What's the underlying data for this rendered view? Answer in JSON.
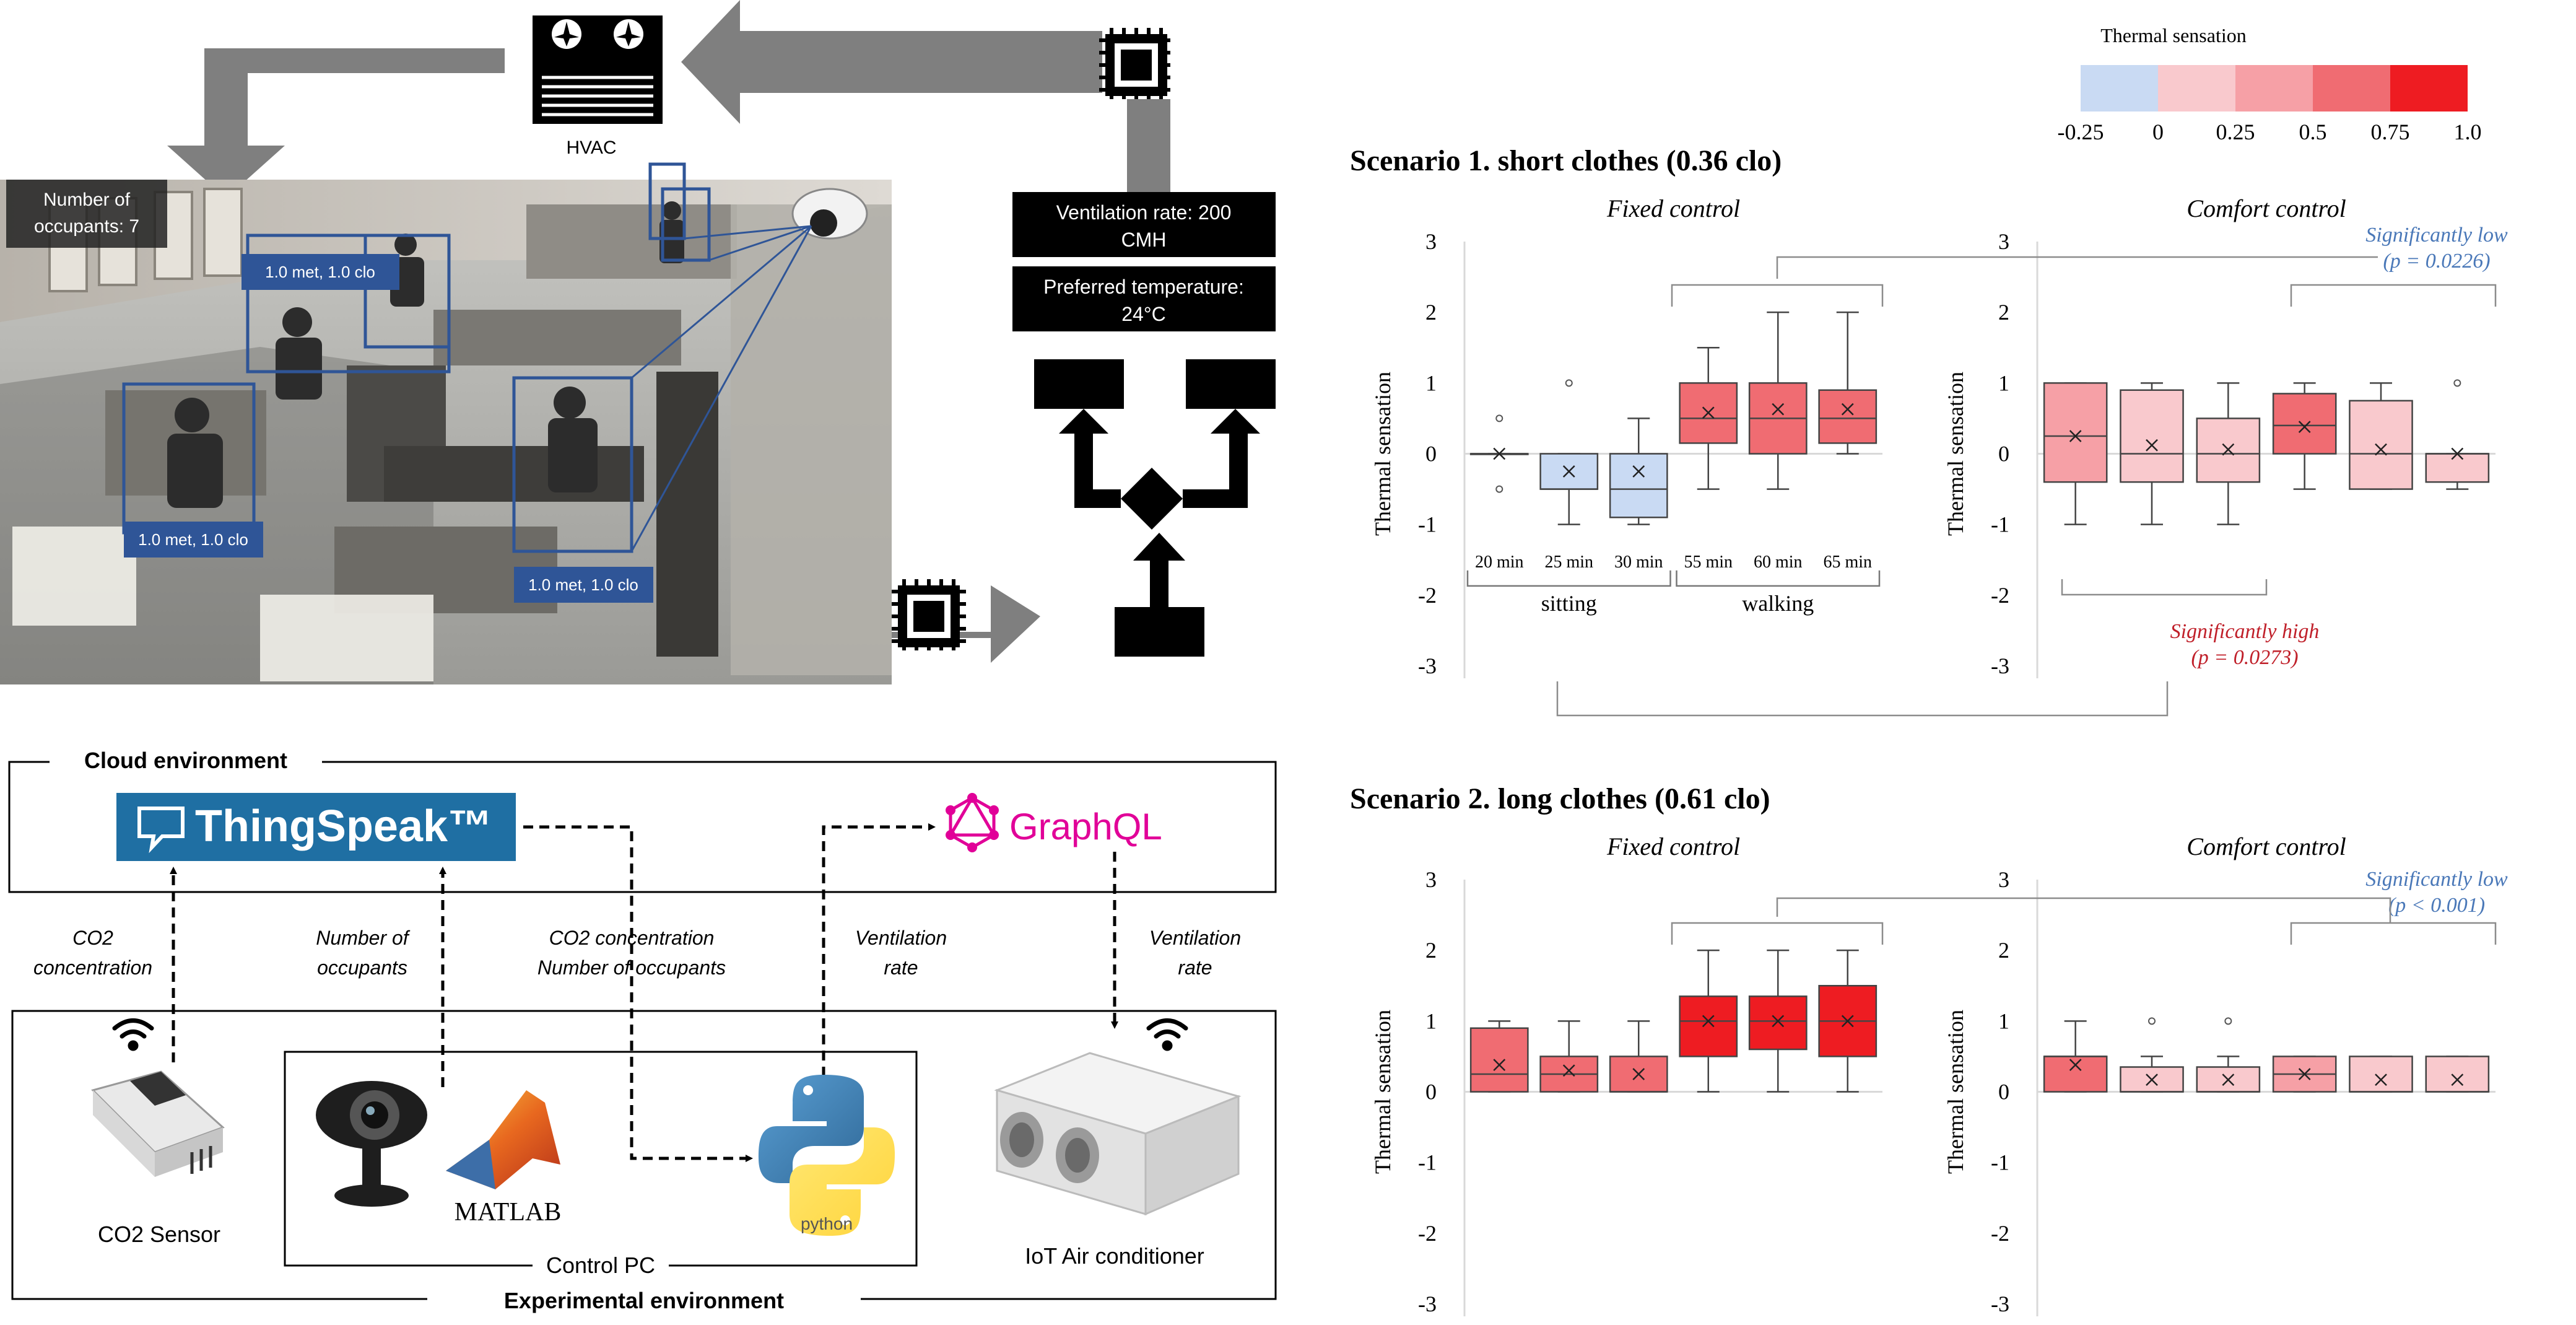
{
  "top_diagram": {
    "hvac_label": "HVAC",
    "occupants_label_1": "Number of",
    "occupants_label_2": "occupants: 7",
    "person_tags": [
      "1.0 met, 1.0 clo",
      "1.0 met, 1.0 clo",
      "1.0 met, 1.0 clo"
    ],
    "ventilation_box": [
      "Ventilation rate: 200",
      "CMH"
    ],
    "temperature_box": [
      "Preferred temperature:",
      "24°C"
    ]
  },
  "bottom_diagram": {
    "cloud_env": "Cloud environment",
    "thingspeak": "ThingSpeak™",
    "graphql": "GraphQL",
    "flow_labels": {
      "co2": [
        "CO2",
        "concentration"
      ],
      "occupants": [
        "Number of",
        "occupants"
      ],
      "combined": [
        "CO2 concentration",
        "Number of occupants"
      ],
      "vent_up": [
        "Ventilation",
        "rate"
      ],
      "vent_down": [
        "Ventilation",
        "rate"
      ]
    },
    "co2_sensor": "CO2 Sensor",
    "matlab": "MATLAB",
    "python": "python",
    "iot_air": "IoT Air conditioner",
    "control_pc": "Control PC",
    "experimental_env": "Experimental environment"
  },
  "legend": {
    "title": "Thermal sensation",
    "ticks": [
      "-0.25",
      "0",
      "0.25",
      "0.5",
      "0.75",
      "1.0"
    ],
    "colors": [
      "#c9daf3",
      "#f9c9cd",
      "#f6a0a6",
      "#f06c72",
      "#ee1c22"
    ]
  },
  "chart_data": [
    {
      "type": "box",
      "title": "Scenario 1. short clothes (0.36 clo)",
      "subtitle": "Fixed control",
      "ylabel": "Thermal sensation",
      "ylim": [
        -3,
        3
      ],
      "yticks": [
        "3",
        "2",
        "1",
        "0",
        "-1",
        "-2",
        "-3"
      ],
      "categories": [
        "20 min",
        "25 min",
        "30 min",
        "55 min",
        "60 min",
        "65 min"
      ],
      "groups": [
        "sitting",
        "walking"
      ],
      "boxes": [
        {
          "min": 0,
          "q1": 0,
          "median": 0,
          "q3": 0,
          "max": 0,
          "mean": 0,
          "outliers": [
            0.5,
            -0.5
          ],
          "color": "#ffffff"
        },
        {
          "min": -1,
          "q1": -0.5,
          "median": -0.5,
          "q3": 0,
          "max": 0,
          "mean": -0.25,
          "outliers": [
            1
          ],
          "color": "#c9daf3"
        },
        {
          "min": -1,
          "q1": -0.9,
          "median": -0.5,
          "q3": 0,
          "max": 0.5,
          "mean": -0.25,
          "outliers": [],
          "color": "#c9daf3"
        },
        {
          "min": -0.5,
          "q1": 0.15,
          "median": 0.5,
          "q3": 1,
          "max": 1.5,
          "mean": 0.58,
          "outliers": [],
          "color": "#f06c72"
        },
        {
          "min": -0.5,
          "q1": 0,
          "median": 0.5,
          "q3": 1,
          "max": 2,
          "mean": 0.63,
          "outliers": [],
          "color": "#f06c72"
        },
        {
          "min": 0,
          "q1": 0.15,
          "median": 0.5,
          "q3": 0.9,
          "max": 2,
          "mean": 0.63,
          "outliers": [],
          "color": "#f06c72"
        }
      ]
    },
    {
      "type": "box",
      "subtitle": "Comfort control",
      "ylabel": "Thermal sensation",
      "ylim": [
        -3,
        3
      ],
      "yticks": [
        "3",
        "2",
        "1",
        "0",
        "-1",
        "-2",
        "-3"
      ],
      "annotations": [
        {
          "text": [
            "Significantly low",
            "(p = 0.0226)"
          ],
          "color": "#4a78b8"
        },
        {
          "text": [
            "Significantly high",
            "(p = 0.0273)"
          ],
          "color": "#c0202a"
        }
      ],
      "boxes": [
        {
          "min": -1,
          "q1": -0.4,
          "median": 0.25,
          "q3": 1,
          "max": 1,
          "mean": 0.25,
          "outliers": [],
          "color": "#f6a0a6"
        },
        {
          "min": -1,
          "q1": -0.4,
          "median": 0,
          "q3": 0.9,
          "max": 1,
          "mean": 0.12,
          "outliers": [],
          "color": "#f9c9cd"
        },
        {
          "min": -1,
          "q1": -0.4,
          "median": 0,
          "q3": 0.5,
          "max": 1,
          "mean": 0.06,
          "outliers": [],
          "color": "#f9c9cd"
        },
        {
          "min": -0.5,
          "q1": 0,
          "median": 0.4,
          "q3": 0.85,
          "max": 1,
          "mean": 0.38,
          "outliers": [],
          "color": "#f06c72"
        },
        {
          "min": -0.5,
          "q1": -0.5,
          "median": 0,
          "q3": 0.75,
          "max": 1,
          "mean": 0.06,
          "outliers": [],
          "color": "#f9c9cd"
        },
        {
          "min": -0.5,
          "q1": -0.4,
          "median": 0,
          "q3": 0,
          "max": 0,
          "mean": 0,
          "outliers": [
            1
          ],
          "color": "#f9c9cd"
        }
      ]
    },
    {
      "type": "box",
      "title": "Scenario 2. long clothes (0.61 clo)",
      "subtitle": "Fixed control",
      "ylabel": "Thermal sensation",
      "ylim": [
        -3,
        3
      ],
      "yticks": [
        "3",
        "2",
        "1",
        "0",
        "-1",
        "-2",
        "-3"
      ],
      "boxes": [
        {
          "min": 0,
          "q1": 0,
          "median": 0.25,
          "q3": 0.9,
          "max": 1,
          "mean": 0.38,
          "outliers": [],
          "color": "#f06c72"
        },
        {
          "min": 0,
          "q1": 0,
          "median": 0.25,
          "q3": 0.5,
          "max": 1,
          "mean": 0.3,
          "outliers": [],
          "color": "#f06c72"
        },
        {
          "min": 0,
          "q1": 0,
          "median": 0,
          "q3": 0.5,
          "max": 1,
          "mean": 0.25,
          "outliers": [],
          "color": "#f06c72"
        },
        {
          "min": 0,
          "q1": 0.5,
          "median": 1,
          "q3": 1.35,
          "max": 2,
          "mean": 1,
          "outliers": [],
          "color": "#ee1c22"
        },
        {
          "min": 0,
          "q1": 0.6,
          "median": 1,
          "q3": 1.35,
          "max": 2,
          "mean": 1,
          "outliers": [],
          "color": "#ee1c22"
        },
        {
          "min": 0,
          "q1": 0.5,
          "median": 1,
          "q3": 1.5,
          "max": 2,
          "mean": 1,
          "outliers": [],
          "color": "#ee1c22"
        }
      ]
    },
    {
      "type": "box",
      "subtitle": "Comfort control",
      "ylabel": "Thermal sensation",
      "ylim": [
        -3,
        3
      ],
      "yticks": [
        "3",
        "2",
        "1",
        "0",
        "-1",
        "-2",
        "-3"
      ],
      "annotations": [
        {
          "text": [
            "Significantly low",
            "(p < 0.001)"
          ],
          "color": "#4a78b8"
        }
      ],
      "boxes": [
        {
          "min": 0,
          "q1": 0,
          "median": 0.5,
          "q3": 0.5,
          "max": 1,
          "mean": 0.38,
          "outliers": [],
          "color": "#f06c72"
        },
        {
          "min": 0,
          "q1": 0,
          "median": 0,
          "q3": 0.35,
          "max": 0.5,
          "mean": 0.17,
          "outliers": [
            1
          ],
          "color": "#f9c9cd"
        },
        {
          "min": 0,
          "q1": 0,
          "median": 0,
          "q3": 0.35,
          "max": 0.5,
          "mean": 0.17,
          "outliers": [
            1
          ],
          "color": "#f9c9cd"
        },
        {
          "min": 0,
          "q1": 0,
          "median": 0.25,
          "q3": 0.5,
          "max": 0.5,
          "mean": 0.25,
          "outliers": [],
          "color": "#f6a0a6"
        },
        {
          "min": 0,
          "q1": 0,
          "median": 0,
          "q3": 0.5,
          "max": 0.5,
          "mean": 0.17,
          "outliers": [],
          "color": "#f9c9cd"
        },
        {
          "min": 0,
          "q1": 0,
          "median": 0,
          "q3": 0.5,
          "max": 0.5,
          "mean": 0.17,
          "outliers": [],
          "color": "#f9c9cd"
        }
      ]
    }
  ]
}
